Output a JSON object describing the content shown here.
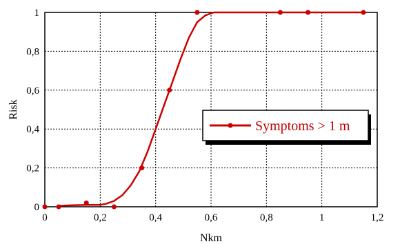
{
  "chart_data": {
    "type": "line",
    "xlabel": "Nkm",
    "ylabel": "Risk",
    "xlim": [
      0,
      1.2
    ],
    "ylim": [
      0,
      1
    ],
    "x_ticks": [
      "0",
      "0,2",
      "0,4",
      "0,6",
      "0,8",
      "1",
      "1,2"
    ],
    "y_ticks": [
      "0",
      "0,2",
      "0,4",
      "0,6",
      "0,8",
      "1"
    ],
    "grid": true,
    "legend_position": "right-middle",
    "series": [
      {
        "name": "Symptoms > 1 m",
        "color": "#cc0000",
        "markers": true,
        "points": [
          {
            "x": 0.0,
            "y": 0.0
          },
          {
            "x": 0.05,
            "y": 0.0
          },
          {
            "x": 0.15,
            "y": 0.02
          },
          {
            "x": 0.25,
            "y": 0.0
          },
          {
            "x": 0.35,
            "y": 0.2
          },
          {
            "x": 0.45,
            "y": 0.6
          },
          {
            "x": 0.55,
            "y": 1.0
          },
          {
            "x": 0.85,
            "y": 1.0
          },
          {
            "x": 0.95,
            "y": 1.0
          },
          {
            "x": 1.15,
            "y": 1.0
          }
        ],
        "fit_curve": [
          [
            0.05,
            0.005
          ],
          [
            0.1,
            0.008
          ],
          [
            0.15,
            0.01
          ],
          [
            0.2,
            0.01
          ],
          [
            0.22,
            0.015
          ],
          [
            0.25,
            0.03
          ],
          [
            0.28,
            0.06
          ],
          [
            0.31,
            0.11
          ],
          [
            0.34,
            0.18
          ],
          [
            0.37,
            0.28
          ],
          [
            0.4,
            0.4
          ],
          [
            0.43,
            0.52
          ],
          [
            0.46,
            0.64
          ],
          [
            0.49,
            0.76
          ],
          [
            0.52,
            0.87
          ],
          [
            0.55,
            0.95
          ],
          [
            0.58,
            0.985
          ],
          [
            0.61,
            1.0
          ],
          [
            0.65,
            1.0
          ],
          [
            0.8,
            1.0
          ],
          [
            1.0,
            1.0
          ],
          [
            1.15,
            1.0
          ]
        ]
      }
    ]
  }
}
